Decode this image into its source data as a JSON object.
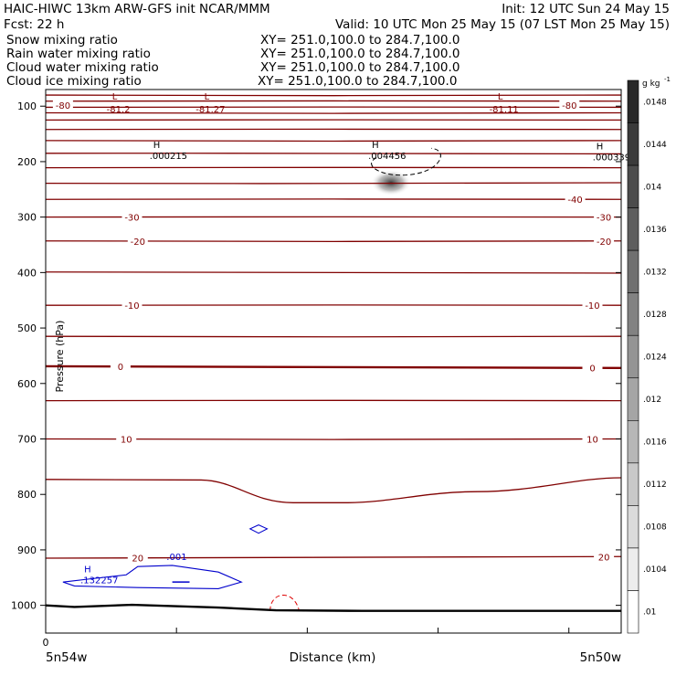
{
  "header": {
    "line1_left": "HAIC-HIWC 13km ARW-GFS init   NCAR/MMM",
    "line1_right": "Init: 12 UTC Sun 24 May 15",
    "line2_left": "Fcst:    22 h",
    "line2_right": "Valid: 10 UTC Mon 25 May 15 (07 LST Mon 25 May 15)"
  },
  "fields": [
    {
      "label": "Snow mixing ratio",
      "xy": "XY= 251.0,100.0 to 284.7,100.0",
      "color": "#000000"
    },
    {
      "label": "Rain water mixing ratio",
      "xy": "XY= 251.0,100.0 to 284.7,100.0",
      "color": "#dd0000"
    },
    {
      "label": "Cloud water mixing ratio",
      "xy": "XY= 251.0,100.0 to 284.7,100.0",
      "color": "#0000cc"
    },
    {
      "label": "Cloud ice mixing ratio",
      "xy": "XY= 251.0,100.0 to 284.7,100.0",
      "color": "#000000"
    }
  ],
  "chart_data": {
    "type": "contour-cross-section",
    "xlabel": "Distance (km)",
    "ylabel": "Pressure (hPa)",
    "x_ticks": [
      {
        "pos": 0,
        "label": "0"
      }
    ],
    "x_end_labels": {
      "left": "5n54w",
      "right": "5n50w"
    },
    "y_ticks": [
      100,
      200,
      300,
      400,
      500,
      600,
      700,
      800,
      900,
      1000
    ],
    "ylim": [
      1050,
      70
    ],
    "temperature_color": "#800000",
    "temperature_contours": [
      {
        "p_left": 80,
        "p_right": 80
      },
      {
        "p_left": 91,
        "p_right": 91
      },
      {
        "p_left": 102,
        "p_right": 102
      },
      {
        "p_left": 112,
        "p_right": 112
      },
      {
        "p_left": 125,
        "p_right": 125
      },
      {
        "p_left": 142,
        "p_right": 142
      },
      {
        "p_left": 162,
        "p_right": 162
      },
      {
        "p_left": 185,
        "p_right": 186
      },
      {
        "p_left": 211,
        "p_right": 211
      },
      {
        "p_left": 239,
        "p_right": 238
      },
      {
        "p_left": 268,
        "p_right": 268,
        "label": "-40",
        "label_pos": 0.92
      },
      {
        "p_left": 300,
        "p_right": 300,
        "label": "-30",
        "label_pos": [
          0.15,
          0.97
        ]
      },
      {
        "p_left": 343,
        "p_right": 343,
        "label": "-20",
        "label_pos": [
          0.16,
          0.97
        ]
      },
      {
        "p_left": 399,
        "p_right": 401
      },
      {
        "p_left": 459,
        "p_right": 459,
        "label": "-10",
        "label_pos": [
          0.15,
          0.95
        ]
      },
      {
        "p_left": 515,
        "p_right": 515
      },
      {
        "p_left": 569,
        "p_right": 572,
        "label": "0",
        "label_pos": [
          0.13,
          0.95
        ],
        "thick": true
      },
      {
        "p_left": 631,
        "p_right": 631
      },
      {
        "p_left": 700,
        "p_right": 700,
        "label": "10",
        "label_pos": [
          0.14,
          0.95
        ]
      },
      {
        "p_left": 773,
        "p_right": 773
      },
      {
        "p_left": 915,
        "p_right": 912,
        "label": "20",
        "label_pos": [
          0.16,
          0.97
        ]
      }
    ],
    "temperature_labels": [
      {
        "text": "-80",
        "x": 0.03,
        "p": 98
      },
      {
        "text": "-80",
        "x": 0.91,
        "p": 98
      }
    ],
    "lows": [
      {
        "letter": "L",
        "value": "-81.2",
        "x": 0.12,
        "p": 88
      },
      {
        "letter": "L",
        "value": "-81.27",
        "x": 0.28,
        "p": 88
      },
      {
        "letter": "L",
        "value": "-81.11",
        "x": 0.79,
        "p": 88
      }
    ],
    "highs": [
      {
        "letter": "H",
        "value": ".000215",
        "x": 0.19,
        "p": 192,
        "color": "#000000"
      },
      {
        "letter": "H",
        "value": ".004456",
        "x": 0.57,
        "p": 192,
        "color": "#000000"
      },
      {
        "letter": "H",
        "value": ".000339",
        "x": 0.96,
        "p": 194,
        "color": "#000000"
      },
      {
        "letter": "H",
        "value": ".132257",
        "x": 0.07,
        "p": 957,
        "color": "#0000cc"
      }
    ],
    "cloud_water_label": {
      "text": ".001",
      "x": 0.21,
      "p": 918
    },
    "surface_pressure": [
      {
        "x": 0.0,
        "p": 1000
      },
      {
        "x": 0.05,
        "p": 1003
      },
      {
        "x": 0.15,
        "p": 999
      },
      {
        "x": 0.3,
        "p": 1004
      },
      {
        "x": 0.4,
        "p": 1009
      },
      {
        "x": 0.55,
        "p": 1010
      },
      {
        "x": 0.75,
        "p": 1010
      },
      {
        "x": 1.0,
        "p": 1010
      }
    ],
    "colorbar": {
      "unit": "g kg",
      "unit_exp": "-1",
      "ticks": [
        ".0148",
        ".0144",
        ".014",
        ".0136",
        ".0132",
        ".0128",
        ".0124",
        ".012",
        ".0116",
        ".0112",
        ".0108",
        ".0104",
        ".01"
      ]
    }
  }
}
